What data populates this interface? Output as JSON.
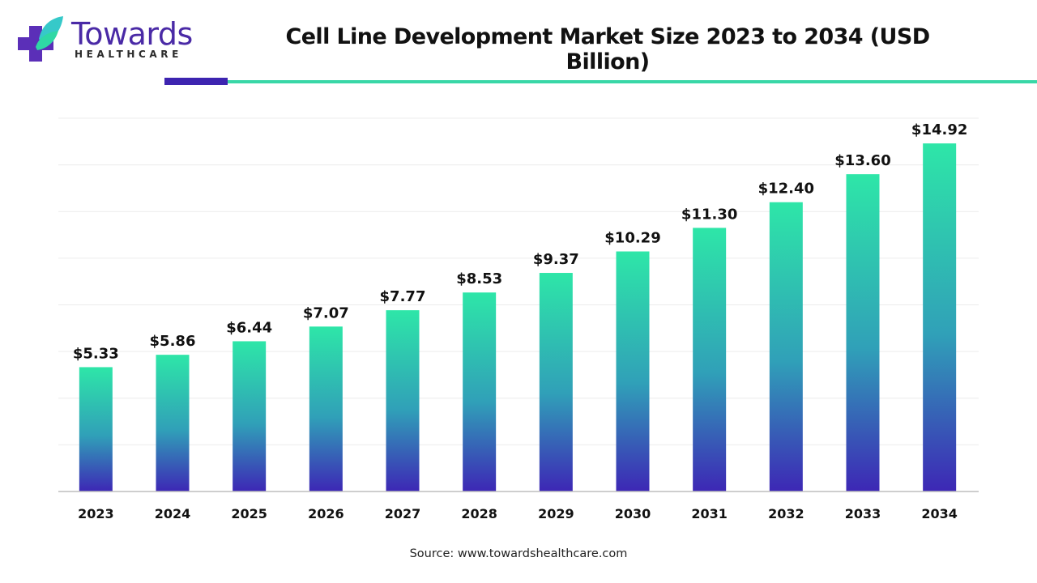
{
  "brand": {
    "name": "Towards",
    "sub": "HEALTHCARE",
    "logo_icon": "plus-cross-leaf-icon",
    "colors": {
      "purple": "#4a2aa6",
      "teal": "#39d7a7"
    }
  },
  "header": {
    "title": "Cell Line Development Market Size 2023 to 2034 (USD Billion)"
  },
  "footer": {
    "source": "Source: www.towardshealthcare.com"
  },
  "chart_data": {
    "type": "bar",
    "title": "Cell Line Development Market Size 2023 to 2034 (USD Billion)",
    "xlabel": "",
    "ylabel": "",
    "categories": [
      "2023",
      "2024",
      "2025",
      "2026",
      "2027",
      "2028",
      "2029",
      "2030",
      "2031",
      "2032",
      "2033",
      "2034"
    ],
    "values": [
      5.33,
      5.86,
      6.44,
      7.07,
      7.77,
      8.53,
      9.37,
      10.29,
      11.3,
      12.4,
      13.6,
      14.92
    ],
    "labels": [
      "$5.33",
      "$5.86",
      "$6.44",
      "$7.07",
      "$7.77",
      "$8.53",
      "$9.37",
      "$10.29",
      "$11.30",
      "$12.40",
      "$13.60",
      "$14.92"
    ],
    "ylim": [
      0,
      16
    ],
    "grid": true,
    "gradient": {
      "top": "#2ee6a8",
      "mid": "#30a0b8",
      "bottom": "#3d27b5"
    }
  }
}
